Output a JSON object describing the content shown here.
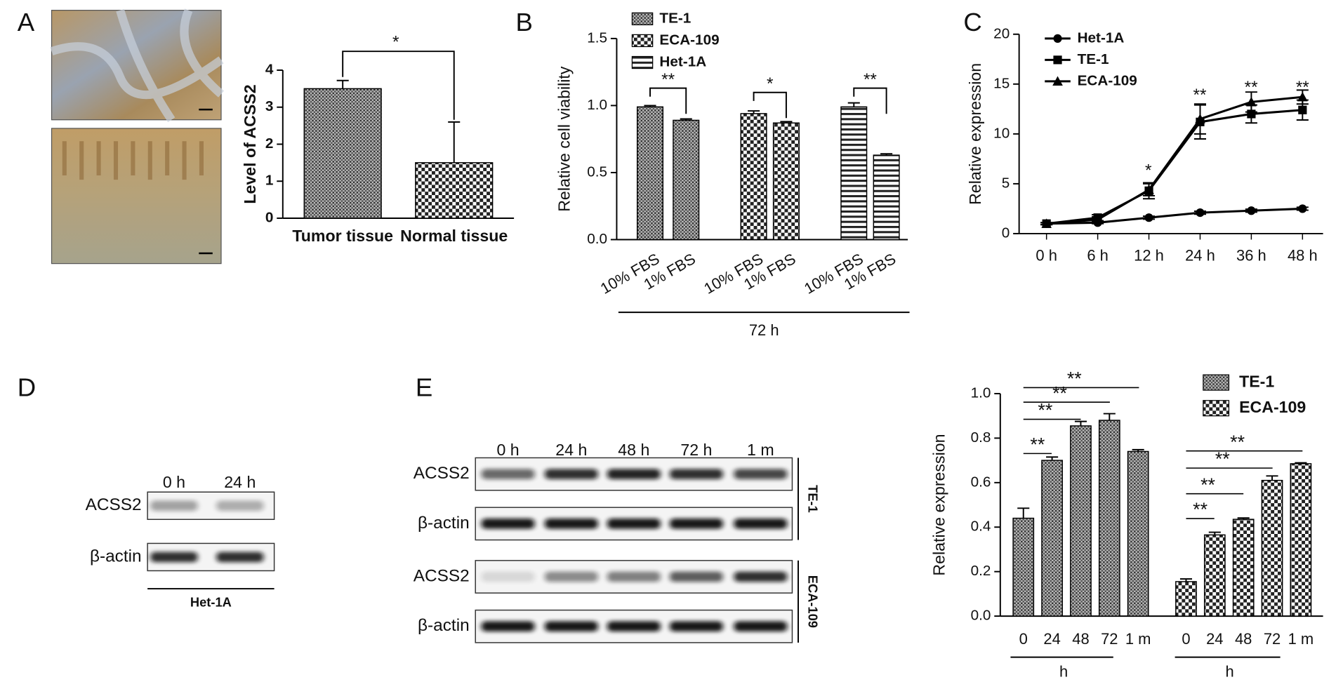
{
  "panel_labels": [
    "A",
    "B",
    "C",
    "D",
    "E"
  ],
  "chart_data": [
    {
      "type": "bar",
      "ylabel": "Level of ACSS2",
      "categories": [
        "Tumor tissue",
        "Normal tissue"
      ],
      "values": [
        3.5,
        1.5
      ],
      "errors": [
        0.22,
        1.1
      ],
      "ylim": [
        0,
        4
      ],
      "yticks": [
        0,
        1,
        2,
        3,
        4
      ],
      "annotations": [
        "*"
      ]
    },
    {
      "type": "bar",
      "ylabel": "Relative cell viability",
      "xlabel": "72 h",
      "categories": [
        "10% FBS",
        "1% FBS",
        "10% FBS",
        "1% FBS",
        "10% FBS",
        "1% FBS"
      ],
      "series": [
        {
          "name": "TE-1",
          "values": [
            0.99,
            0.89,
            null,
            null,
            null,
            null
          ],
          "errors": [
            0.01,
            0.01,
            null,
            null,
            null,
            null
          ]
        },
        {
          "name": "ECA-109",
          "values": [
            null,
            null,
            0.94,
            0.87,
            null,
            null
          ],
          "errors": [
            null,
            null,
            0.02,
            0.01,
            null,
            null
          ]
        },
        {
          "name": "Het-1A",
          "values": [
            null,
            null,
            null,
            null,
            0.99,
            0.63
          ],
          "errors": [
            null,
            null,
            null,
            null,
            0.03,
            0.01
          ]
        }
      ],
      "ylim": [
        0,
        1.5
      ],
      "yticks": [
        {
          "value": 0,
          "label": "0.0"
        },
        {
          "value": 0.5,
          "label": "0.5"
        },
        {
          "value": 1,
          "label": "1.0"
        },
        {
          "value": 1.5,
          "label": "1.5"
        }
      ],
      "annotations": [
        "**",
        "*",
        "**"
      ]
    },
    {
      "type": "line",
      "ylabel": "Relative expression",
      "categories": [
        "0 h",
        "6 h",
        "12 h",
        "24 h",
        "36 h",
        "48 h"
      ],
      "series": [
        {
          "name": "Het-1A",
          "values": [
            1,
            1.1,
            1.6,
            2.1,
            2.3,
            2.5
          ],
          "errors": [
            0.1,
            0.1,
            0.15,
            0.15,
            0.15,
            0.15
          ]
        },
        {
          "name": "TE-1",
          "values": [
            1,
            1.6,
            4.3,
            11.2,
            12.0,
            12.4
          ],
          "errors": [
            0.1,
            0.3,
            0.8,
            1.7,
            0.9,
            1.0
          ]
        },
        {
          "name": "ECA-109",
          "values": [
            1,
            1.4,
            4.4,
            11.5,
            13.2,
            13.7
          ],
          "errors": [
            0.1,
            0.3,
            0.6,
            1.5,
            1.0,
            0.7
          ]
        }
      ],
      "ylim": [
        0,
        20
      ],
      "yticks": [
        0,
        5,
        10,
        15,
        20
      ],
      "annotations": [
        "*",
        "**",
        "**",
        "**"
      ]
    },
    {
      "type": "bar",
      "ylabel": "Relative expression",
      "xlabel": "h",
      "categories": [
        "0",
        "24",
        "48",
        "72",
        "1 m"
      ],
      "series": [
        {
          "name": "TE-1",
          "values": [
            0.44,
            0.7,
            0.855,
            0.88,
            0.74
          ],
          "errors": [
            0.045,
            0.015,
            0.02,
            0.03,
            0.008
          ]
        },
        {
          "name": "ECA-109",
          "values": [
            0.155,
            0.365,
            0.435,
            0.61,
            0.685
          ],
          "errors": [
            0.012,
            0.012,
            0.006,
            0.02,
            0.004
          ]
        }
      ],
      "ylim": [
        0,
        1
      ],
      "yticks": [
        {
          "value": 0,
          "label": "0.0"
        },
        {
          "value": 0.2,
          "label": "0.2"
        },
        {
          "value": 0.4,
          "label": "0.4"
        },
        {
          "value": 0.6,
          "label": "0.6"
        },
        {
          "value": 0.8,
          "label": "0.8"
        },
        {
          "value": 1,
          "label": "1.0"
        }
      ],
      "annotations": [
        "**",
        "**",
        "**",
        "**",
        "**",
        "**",
        "**",
        "**"
      ]
    }
  ],
  "blots": [
    {
      "lanes": [
        "0 h",
        "24 h"
      ],
      "groups": [
        {
          "rows": [
            "ACSS2",
            "β-actin"
          ]
        }
      ],
      "caption": "Het-1A"
    },
    {
      "lanes": [
        "0 h",
        "24 h",
        "48 h",
        "72 h",
        "1 m"
      ],
      "groups": [
        {
          "cell": "TE-1",
          "rows": [
            "ACSS2",
            "β-actin"
          ]
        },
        {
          "cell": "ECA-109",
          "rows": [
            "ACSS2",
            "β-actin"
          ]
        }
      ]
    }
  ]
}
